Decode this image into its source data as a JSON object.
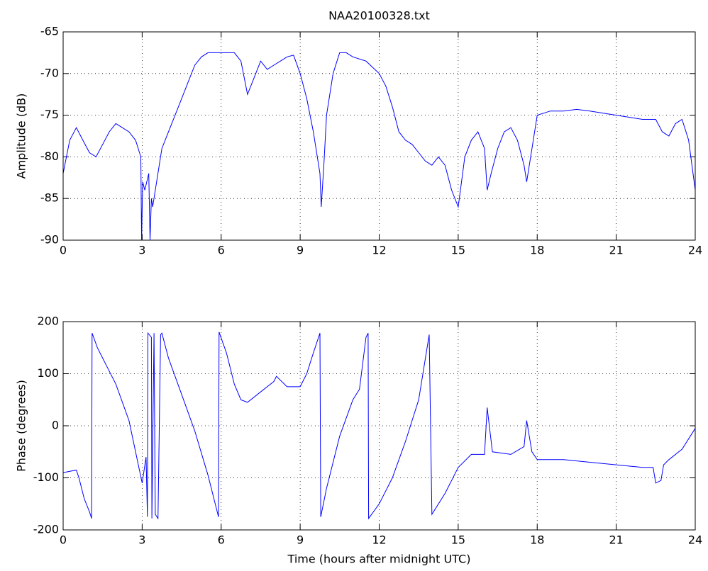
{
  "chart_data": [
    {
      "type": "line",
      "title": "NAA20100328.txt",
      "ylabel": "Amplitude (dB)",
      "color": "#0000ff",
      "grid": true,
      "xlim": [
        0,
        24
      ],
      "xticks": [
        0,
        3,
        6,
        9,
        12,
        15,
        18,
        21,
        24
      ],
      "ylim": [
        -90,
        -65
      ],
      "yticks": [
        -90,
        -85,
        -80,
        -75,
        -70,
        -65
      ],
      "x": [
        0,
        0.25,
        0.5,
        0.75,
        1,
        1.25,
        1.5,
        1.75,
        2,
        2.25,
        2.5,
        2.75,
        2.95,
        2.98,
        3.02,
        3.1,
        3.25,
        3.3,
        3.35,
        3.4,
        3.5,
        3.75,
        4,
        4.25,
        4.5,
        4.75,
        5,
        5.25,
        5.5,
        6,
        6.5,
        6.75,
        7,
        7.25,
        7.5,
        7.75,
        8,
        8.25,
        8.5,
        8.75,
        9,
        9.25,
        9.5,
        9.75,
        9.8,
        9.9,
        10,
        10.25,
        10.5,
        10.75,
        11,
        11.5,
        12,
        12.25,
        12.5,
        12.75,
        13,
        13.25,
        13.5,
        13.75,
        14,
        14.25,
        14.5,
        14.75,
        15,
        15.25,
        15.5,
        15.75,
        16,
        16.1,
        16.25,
        16.5,
        16.75,
        17,
        17.25,
        17.5,
        17.6,
        17.75,
        18,
        18.5,
        19,
        19.5,
        20,
        21,
        22,
        22.5,
        22.75,
        23,
        23.25,
        23.5,
        23.75,
        24
      ],
      "values": [
        -82,
        -78,
        -76.5,
        -78,
        -79.5,
        -80,
        -78.5,
        -77,
        -76,
        -76.5,
        -77,
        -78,
        -80,
        -90,
        -83,
        -84,
        -82,
        -90,
        -85,
        -86,
        -84,
        -79,
        -77,
        -75,
        -73,
        -71,
        -69,
        -68,
        -67.5,
        -67.5,
        -67.5,
        -68.5,
        -72.5,
        -70.5,
        -68.5,
        -69.5,
        -69,
        -68.5,
        -68,
        -67.8,
        -70,
        -73,
        -77,
        -82,
        -86,
        -81,
        -75,
        -70,
        -67.5,
        -67.5,
        -68,
        -68.5,
        -70,
        -71.5,
        -74,
        -77,
        -78,
        -78.5,
        -79.5,
        -80.5,
        -81,
        -80,
        -81,
        -84,
        -86,
        -80,
        -78,
        -77,
        -79,
        -84,
        -82,
        -79,
        -77,
        -76.5,
        -78,
        -81,
        -83,
        -80,
        -75,
        -74.5,
        -74.5,
        -74.3,
        -74.5,
        -75,
        -75.5,
        -75.5,
        -77,
        -77.5,
        -76,
        -75.5,
        -78,
        -84
      ]
    },
    {
      "type": "line",
      "ylabel": "Phase (degrees)",
      "xlabel": "Time (hours after midnight UTC)",
      "color": "#0000ff",
      "grid": true,
      "xlim": [
        0,
        24
      ],
      "xticks": [
        0,
        3,
        6,
        9,
        12,
        15,
        18,
        21,
        24
      ],
      "ylim": [
        -200,
        200
      ],
      "yticks": [
        -200,
        -100,
        0,
        100,
        200
      ],
      "x": [
        0,
        0.5,
        0.6,
        0.8,
        1,
        1.08,
        1.1,
        1.3,
        1.6,
        2,
        2.5,
        3,
        3.15,
        3.2,
        3.22,
        3.35,
        3.37,
        3.45,
        3.5,
        3.6,
        3.7,
        3.75,
        4,
        4.5,
        5,
        5.5,
        5.9,
        5.92,
        6.2,
        6.5,
        6.75,
        7,
        7.5,
        8,
        8.1,
        8.5,
        9,
        9.25,
        9.5,
        9.75,
        9.78,
        10,
        10.5,
        11,
        11.25,
        11.5,
        11.58,
        11.6,
        12,
        12.5,
        13,
        13.5,
        13.9,
        14,
        14.5,
        15,
        15.5,
        16,
        16.1,
        16.3,
        17,
        17.5,
        17.6,
        17.8,
        18,
        19,
        20,
        21,
        22,
        22.4,
        22.5,
        22.7,
        22.8,
        23,
        23.5,
        24
      ],
      "values": [
        -90,
        -85,
        -100,
        -140,
        -165,
        -178,
        178,
        150,
        120,
        80,
        10,
        -110,
        -60,
        -175,
        178,
        170,
        -178,
        178,
        -170,
        -178,
        175,
        178,
        130,
        60,
        -10,
        -95,
        -175,
        180,
        140,
        80,
        50,
        45,
        65,
        85,
        95,
        75,
        75,
        100,
        140,
        178,
        -175,
        -120,
        -20,
        50,
        70,
        170,
        178,
        -178,
        -150,
        -100,
        -30,
        50,
        175,
        -170,
        -130,
        -80,
        -55,
        -55,
        35,
        -50,
        -55,
        -40,
        10,
        -50,
        -65,
        -65,
        -70,
        -75,
        -80,
        -80,
        -110,
        -105,
        -75,
        -65,
        -45,
        -5
      ]
    }
  ]
}
